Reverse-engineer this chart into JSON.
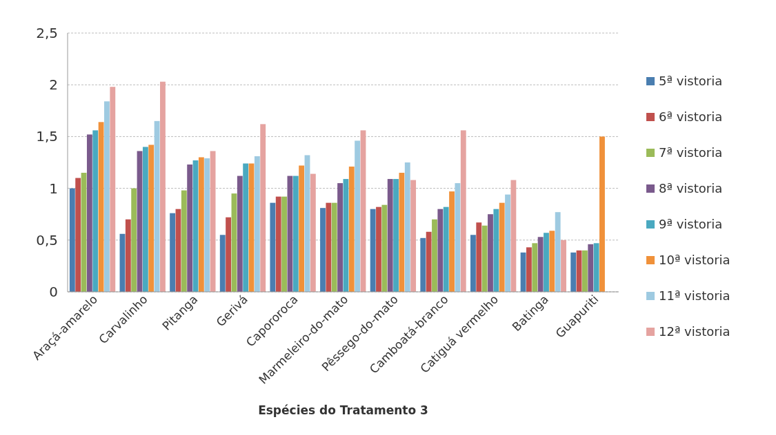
{
  "chart_data": {
    "type": "bar",
    "xlabel": "Espécies do Tratamento 3",
    "categories": [
      "Araçá-amarelo",
      "Carvalinho",
      "Pitanga",
      "Gerivá",
      "Capororoca",
      "Marmeleiro-do-mato",
      "Pêssego-do-mato",
      "Camboatá-branco",
      "Catiguá vermelho",
      "Batinga",
      "Guapuriti"
    ],
    "series": [
      {
        "name": "5ª vistoria",
        "color": "#4a7eb0",
        "values": [
          1.0,
          0.56,
          0.76,
          0.55,
          0.86,
          0.81,
          0.8,
          0.52,
          0.55,
          0.38,
          0.38
        ]
      },
      {
        "name": "6ª vistoria",
        "color": "#c0504d",
        "values": [
          1.1,
          0.7,
          0.8,
          0.72,
          0.92,
          0.86,
          0.82,
          0.58,
          0.67,
          0.43,
          0.4
        ]
      },
      {
        "name": "7ª vistoria",
        "color": "#9bbb59",
        "values": [
          1.15,
          1.0,
          0.98,
          0.95,
          0.92,
          0.86,
          0.84,
          0.7,
          0.64,
          0.47,
          0.4
        ]
      },
      {
        "name": "8ª vistoria",
        "color": "#7a5a8c",
        "values": [
          1.52,
          1.36,
          1.23,
          1.12,
          1.12,
          1.05,
          1.09,
          0.8,
          0.75,
          0.53,
          0.46
        ]
      },
      {
        "name": "9ª vistoria",
        "color": "#4aa9c0",
        "values": [
          1.56,
          1.4,
          1.27,
          1.24,
          1.12,
          1.09,
          1.09,
          0.82,
          0.8,
          0.57,
          0.47
        ]
      },
      {
        "name": "10ª vistoria",
        "color": "#f0913a",
        "values": [
          1.64,
          1.42,
          1.3,
          1.24,
          1.22,
          1.21,
          1.15,
          0.97,
          0.86,
          0.59,
          1.5
        ]
      },
      {
        "name": "11ª vistoria",
        "color": "#9ecae1",
        "values": [
          1.84,
          1.65,
          1.29,
          1.31,
          1.32,
          1.46,
          1.25,
          1.05,
          0.94,
          0.77,
          null
        ]
      },
      {
        "name": "12ª vistoria",
        "color": "#e5a3a0",
        "values": [
          1.98,
          2.03,
          1.36,
          1.62,
          1.14,
          1.56,
          1.08,
          1.56,
          1.08,
          0.5,
          null
        ]
      }
    ],
    "ylim": [
      0,
      2.5
    ],
    "yticks": [
      0,
      {
        "value": 0.5,
        "label": "0,5"
      },
      1,
      {
        "value": 1.5,
        "label": "1,5"
      },
      2,
      {
        "value": 2.5,
        "label": "2,5"
      }
    ],
    "grid": "y",
    "legend": "right"
  }
}
